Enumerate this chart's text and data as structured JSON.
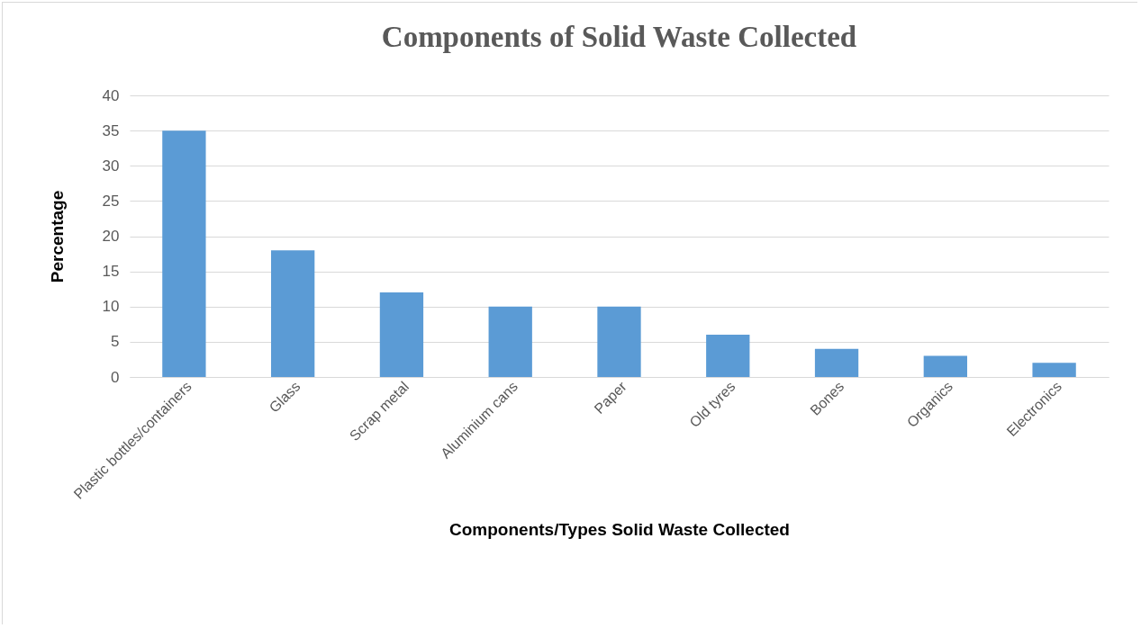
{
  "chart_data": {
    "type": "bar",
    "title": "Components  of Solid Waste Collected",
    "xlabel": "Components/Types Solid Waste Collected",
    "ylabel": "Percentage",
    "categories": [
      "Plastic bottles/containers",
      "Glass",
      "Scrap metal",
      "Aluminium cans",
      "Paper",
      "Old tyres",
      "Bones",
      "Organics",
      "Electronics"
    ],
    "values": [
      35,
      18,
      12,
      10,
      10,
      6,
      4,
      3,
      2
    ],
    "color": "#5b9bd5",
    "ylim": [
      0,
      40
    ],
    "yticks": [
      0,
      5,
      10,
      15,
      20,
      25,
      30,
      35,
      40
    ],
    "grid": "y"
  }
}
